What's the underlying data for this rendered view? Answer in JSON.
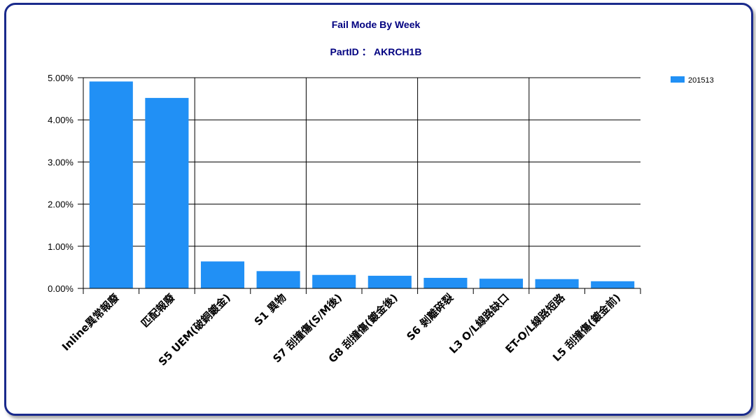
{
  "chart_data": {
    "type": "bar",
    "title": "Fail Mode By Week",
    "subtitle": "PartID  ：  AKRCH1B",
    "categories": [
      "Inline異常報廢",
      "匹配報廢",
      "S5 UEM(破銅鍍金)",
      "S1 異物",
      "S7 刮撞傷(S/M後)",
      "G8 刮撞傷(鍍金後)",
      "S6 剝離碎裂",
      "L3 O/L線路缺口",
      "ET-O/L線路短路",
      "L5 刮撞傷(鍍金前)"
    ],
    "series": [
      {
        "name": "201513",
        "values": [
          4.91,
          4.52,
          0.64,
          0.41,
          0.32,
          0.3,
          0.25,
          0.23,
          0.22,
          0.17
        ]
      }
    ],
    "ylim": [
      0,
      5
    ],
    "yticks": [
      "0.00%",
      "1.00%",
      "2.00%",
      "3.00%",
      "4.00%",
      "5.00%"
    ],
    "xlabel": "",
    "ylabel": "",
    "grid": true,
    "legend_position": "top-right",
    "colors": {
      "bar": "#2190f5",
      "frame": "#1a2a8c",
      "title": "#000080"
    }
  }
}
